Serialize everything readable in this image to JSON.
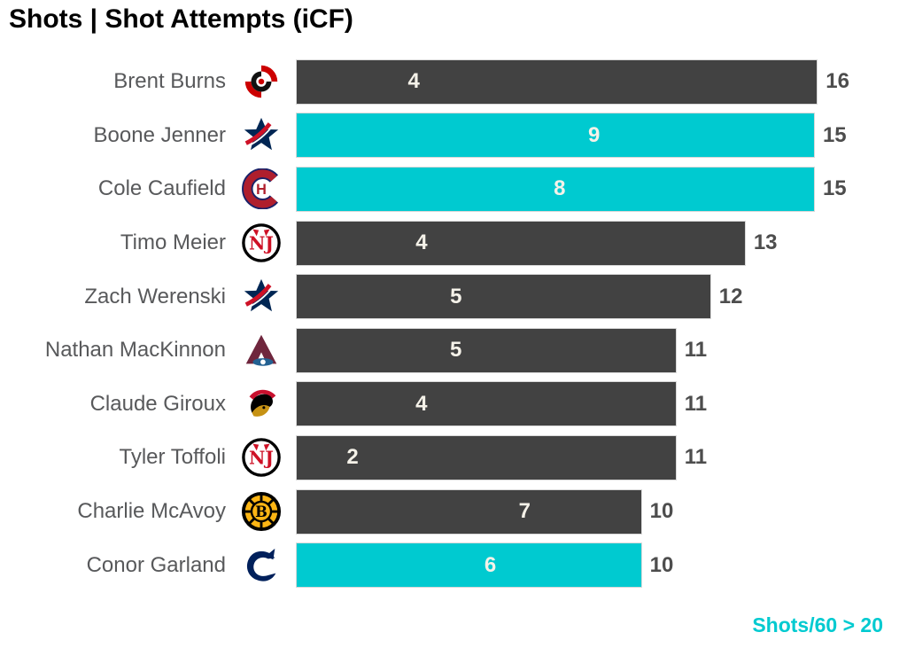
{
  "title": "Shots | Shot Attempts (iCF)",
  "legend_note": "Shots/60 > 20",
  "colors": {
    "bar_default": "#424242",
    "bar_highlight": "#00cad0",
    "name_text": "#58595b",
    "value_text": "#4d4d4d",
    "inner_label_text": "#f5f2e9",
    "note_text": "#00cad0",
    "title_text": "#000000",
    "background": "#ffffff"
  },
  "chart_data": {
    "type": "bar",
    "orientation": "horizontal",
    "title": "Shots | Shot Attempts (iCF)",
    "xlim": [
      0,
      16
    ],
    "grid": false,
    "legend_note": "Shots/60 > 20",
    "highlight_rule": "bars in cyan where Shots/60 > 20",
    "categories": [
      "Brent Burns",
      "Boone Jenner",
      "Cole Caufield",
      "Timo Meier",
      "Zach Werenski",
      "Nathan MacKinnon",
      "Claude Giroux",
      "Tyler Toffoli",
      "Charlie McAvoy",
      "Conor Garland"
    ],
    "series": [
      {
        "name": "Shots",
        "values": [
          4,
          9,
          8,
          4,
          5,
          5,
          4,
          2,
          7,
          6
        ]
      },
      {
        "name": "Shot Attempts (iCF)",
        "values": [
          16,
          15,
          15,
          13,
          12,
          11,
          11,
          11,
          10,
          10
        ]
      }
    ],
    "rows": [
      {
        "name": "Brent Burns",
        "logo": "carolina-hurricanes-logo",
        "shots": 4,
        "icf": 16,
        "highlighted": false
      },
      {
        "name": "Boone Jenner",
        "logo": "columbus-blue-jackets-logo",
        "shots": 9,
        "icf": 15,
        "highlighted": true
      },
      {
        "name": "Cole Caufield",
        "logo": "montreal-canadiens-logo",
        "shots": 8,
        "icf": 15,
        "highlighted": true
      },
      {
        "name": "Timo Meier",
        "logo": "new-jersey-devils-logo",
        "shots": 4,
        "icf": 13,
        "highlighted": false
      },
      {
        "name": "Zach Werenski",
        "logo": "columbus-blue-jackets-logo",
        "shots": 5,
        "icf": 12,
        "highlighted": false
      },
      {
        "name": "Nathan MacKinnon",
        "logo": "colorado-avalanche-logo",
        "shots": 5,
        "icf": 11,
        "highlighted": false
      },
      {
        "name": "Claude Giroux",
        "logo": "ottawa-senators-logo",
        "shots": 4,
        "icf": 11,
        "highlighted": false
      },
      {
        "name": "Tyler Toffoli",
        "logo": "new-jersey-devils-logo",
        "shots": 2,
        "icf": 11,
        "highlighted": false
      },
      {
        "name": "Charlie McAvoy",
        "logo": "boston-bruins-logo",
        "shots": 7,
        "icf": 10,
        "highlighted": false
      },
      {
        "name": "Conor Garland",
        "logo": "vancouver-canucks-logo",
        "shots": 6,
        "icf": 10,
        "highlighted": true
      }
    ]
  }
}
